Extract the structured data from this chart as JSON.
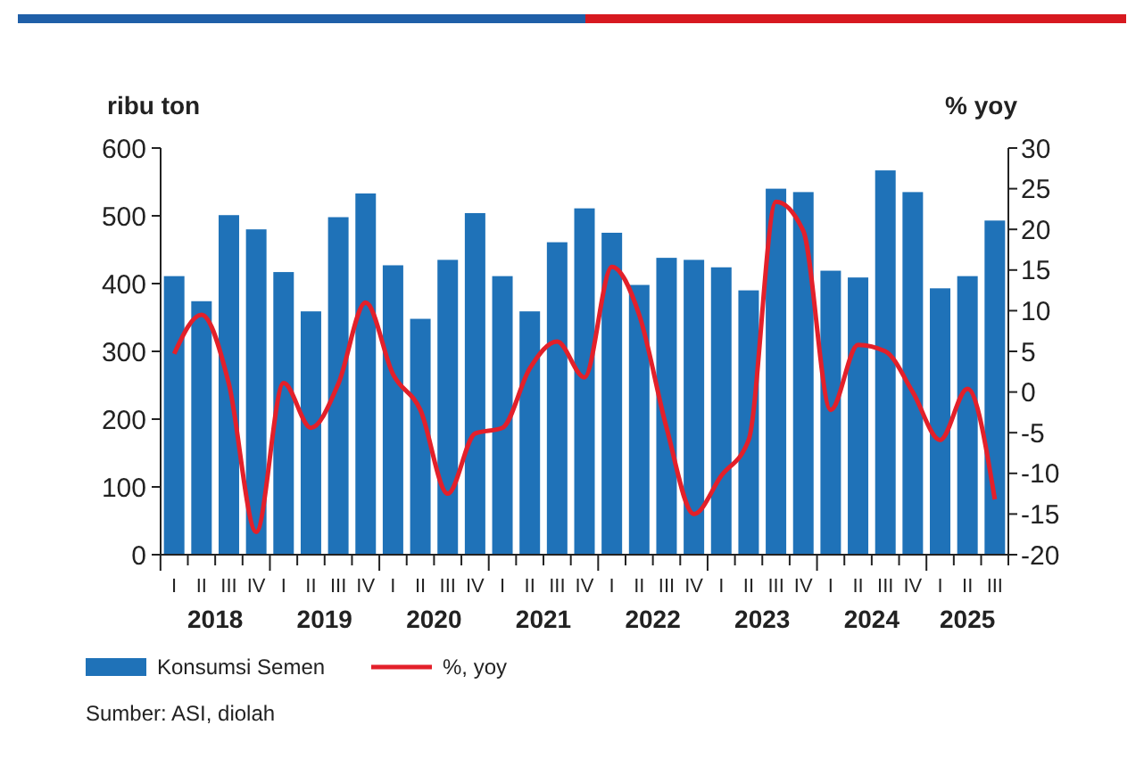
{
  "chart_data": {
    "type": "bar",
    "ylabel": "ribu ton",
    "y2label": "% yoy",
    "categories": [
      "I",
      "II",
      "III",
      "IV",
      "I",
      "II",
      "III",
      "IV",
      "I",
      "II",
      "III",
      "IV",
      "I",
      "II",
      "III",
      "IV",
      "I",
      "II",
      "III",
      "IV",
      "I",
      "II",
      "III",
      "IV",
      "I",
      "II",
      "III",
      "IV",
      "I",
      "II",
      "III"
    ],
    "series": [
      {
        "name": "Konsumsi Semen",
        "color": "#1f72b8",
        "values": [
          411,
          374,
          501,
          480,
          417,
          359,
          498,
          533,
          427,
          348,
          435,
          504,
          411,
          359,
          461,
          511,
          475,
          398,
          438,
          435,
          424,
          390,
          540,
          535,
          419,
          409,
          567,
          535,
          393,
          411,
          493
        ]
      },
      {
        "name": "%, yoy",
        "type": "line",
        "axis": "y2",
        "color": "#e3202a",
        "values": [
          4.7,
          9.5,
          1,
          -17.2,
          1.1,
          -4.4,
          1,
          11,
          2.2,
          -2.2,
          -12.5,
          -5.1,
          -4.4,
          2.9,
          6.2,
          1.8,
          15.4,
          9.5,
          -4.4,
          -15,
          -10.3,
          -5.9,
          23.4,
          19.8,
          -2.2,
          5.8,
          5,
          0,
          -5.9,
          0.4,
          -13.2
        ]
      }
    ],
    "ylim": [
      0,
      600
    ],
    "yticks": [
      0,
      100,
      200,
      300,
      400,
      500,
      600
    ],
    "y2lim": [
      -20,
      30
    ],
    "y2ticks": [
      -20,
      -15,
      -10,
      -5,
      0,
      5,
      10,
      15,
      20,
      25,
      30
    ],
    "grid": false,
    "legend": "bottom",
    "marker": "none",
    "line_style": "solid",
    "annotations": [
      "2018",
      "2019",
      "2020",
      "2021",
      "2022",
      "2023",
      "2024",
      "2025",
      "Sumber: ASI, diolah"
    ]
  }
}
